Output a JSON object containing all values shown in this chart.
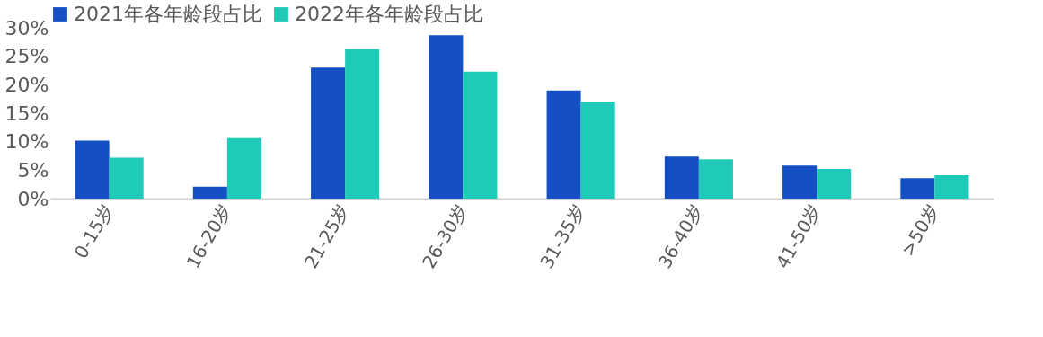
{
  "chart_data": {
    "type": "bar",
    "categories": [
      "0-15岁",
      "16-20岁",
      "21-25岁",
      "26-30岁",
      "31-35岁",
      "36-40岁",
      "41-50岁",
      ">50岁"
    ],
    "series": [
      {
        "name": "2021年各年龄段占比",
        "color": "#1450c4",
        "values": [
          10.2,
          2.1,
          23.0,
          28.7,
          19.0,
          7.4,
          5.8,
          3.6
        ]
      },
      {
        "name": "2022年各年龄段占比",
        "color": "#1fcab8",
        "values": [
          7.2,
          10.6,
          26.3,
          22.3,
          17.0,
          6.9,
          5.2,
          4.1
        ]
      }
    ],
    "ylim": [
      0,
      30
    ],
    "yticks": [
      {
        "value": 0,
        "label": "0%"
      },
      {
        "value": 5,
        "label": "5%"
      },
      {
        "value": 10,
        "label": "10%"
      },
      {
        "value": 15,
        "label": "15%"
      },
      {
        "value": 20,
        "label": "20%"
      },
      {
        "value": 25,
        "label": "25%"
      },
      {
        "value": 30,
        "label": "30%"
      }
    ],
    "grid": false,
    "legend": "top"
  }
}
